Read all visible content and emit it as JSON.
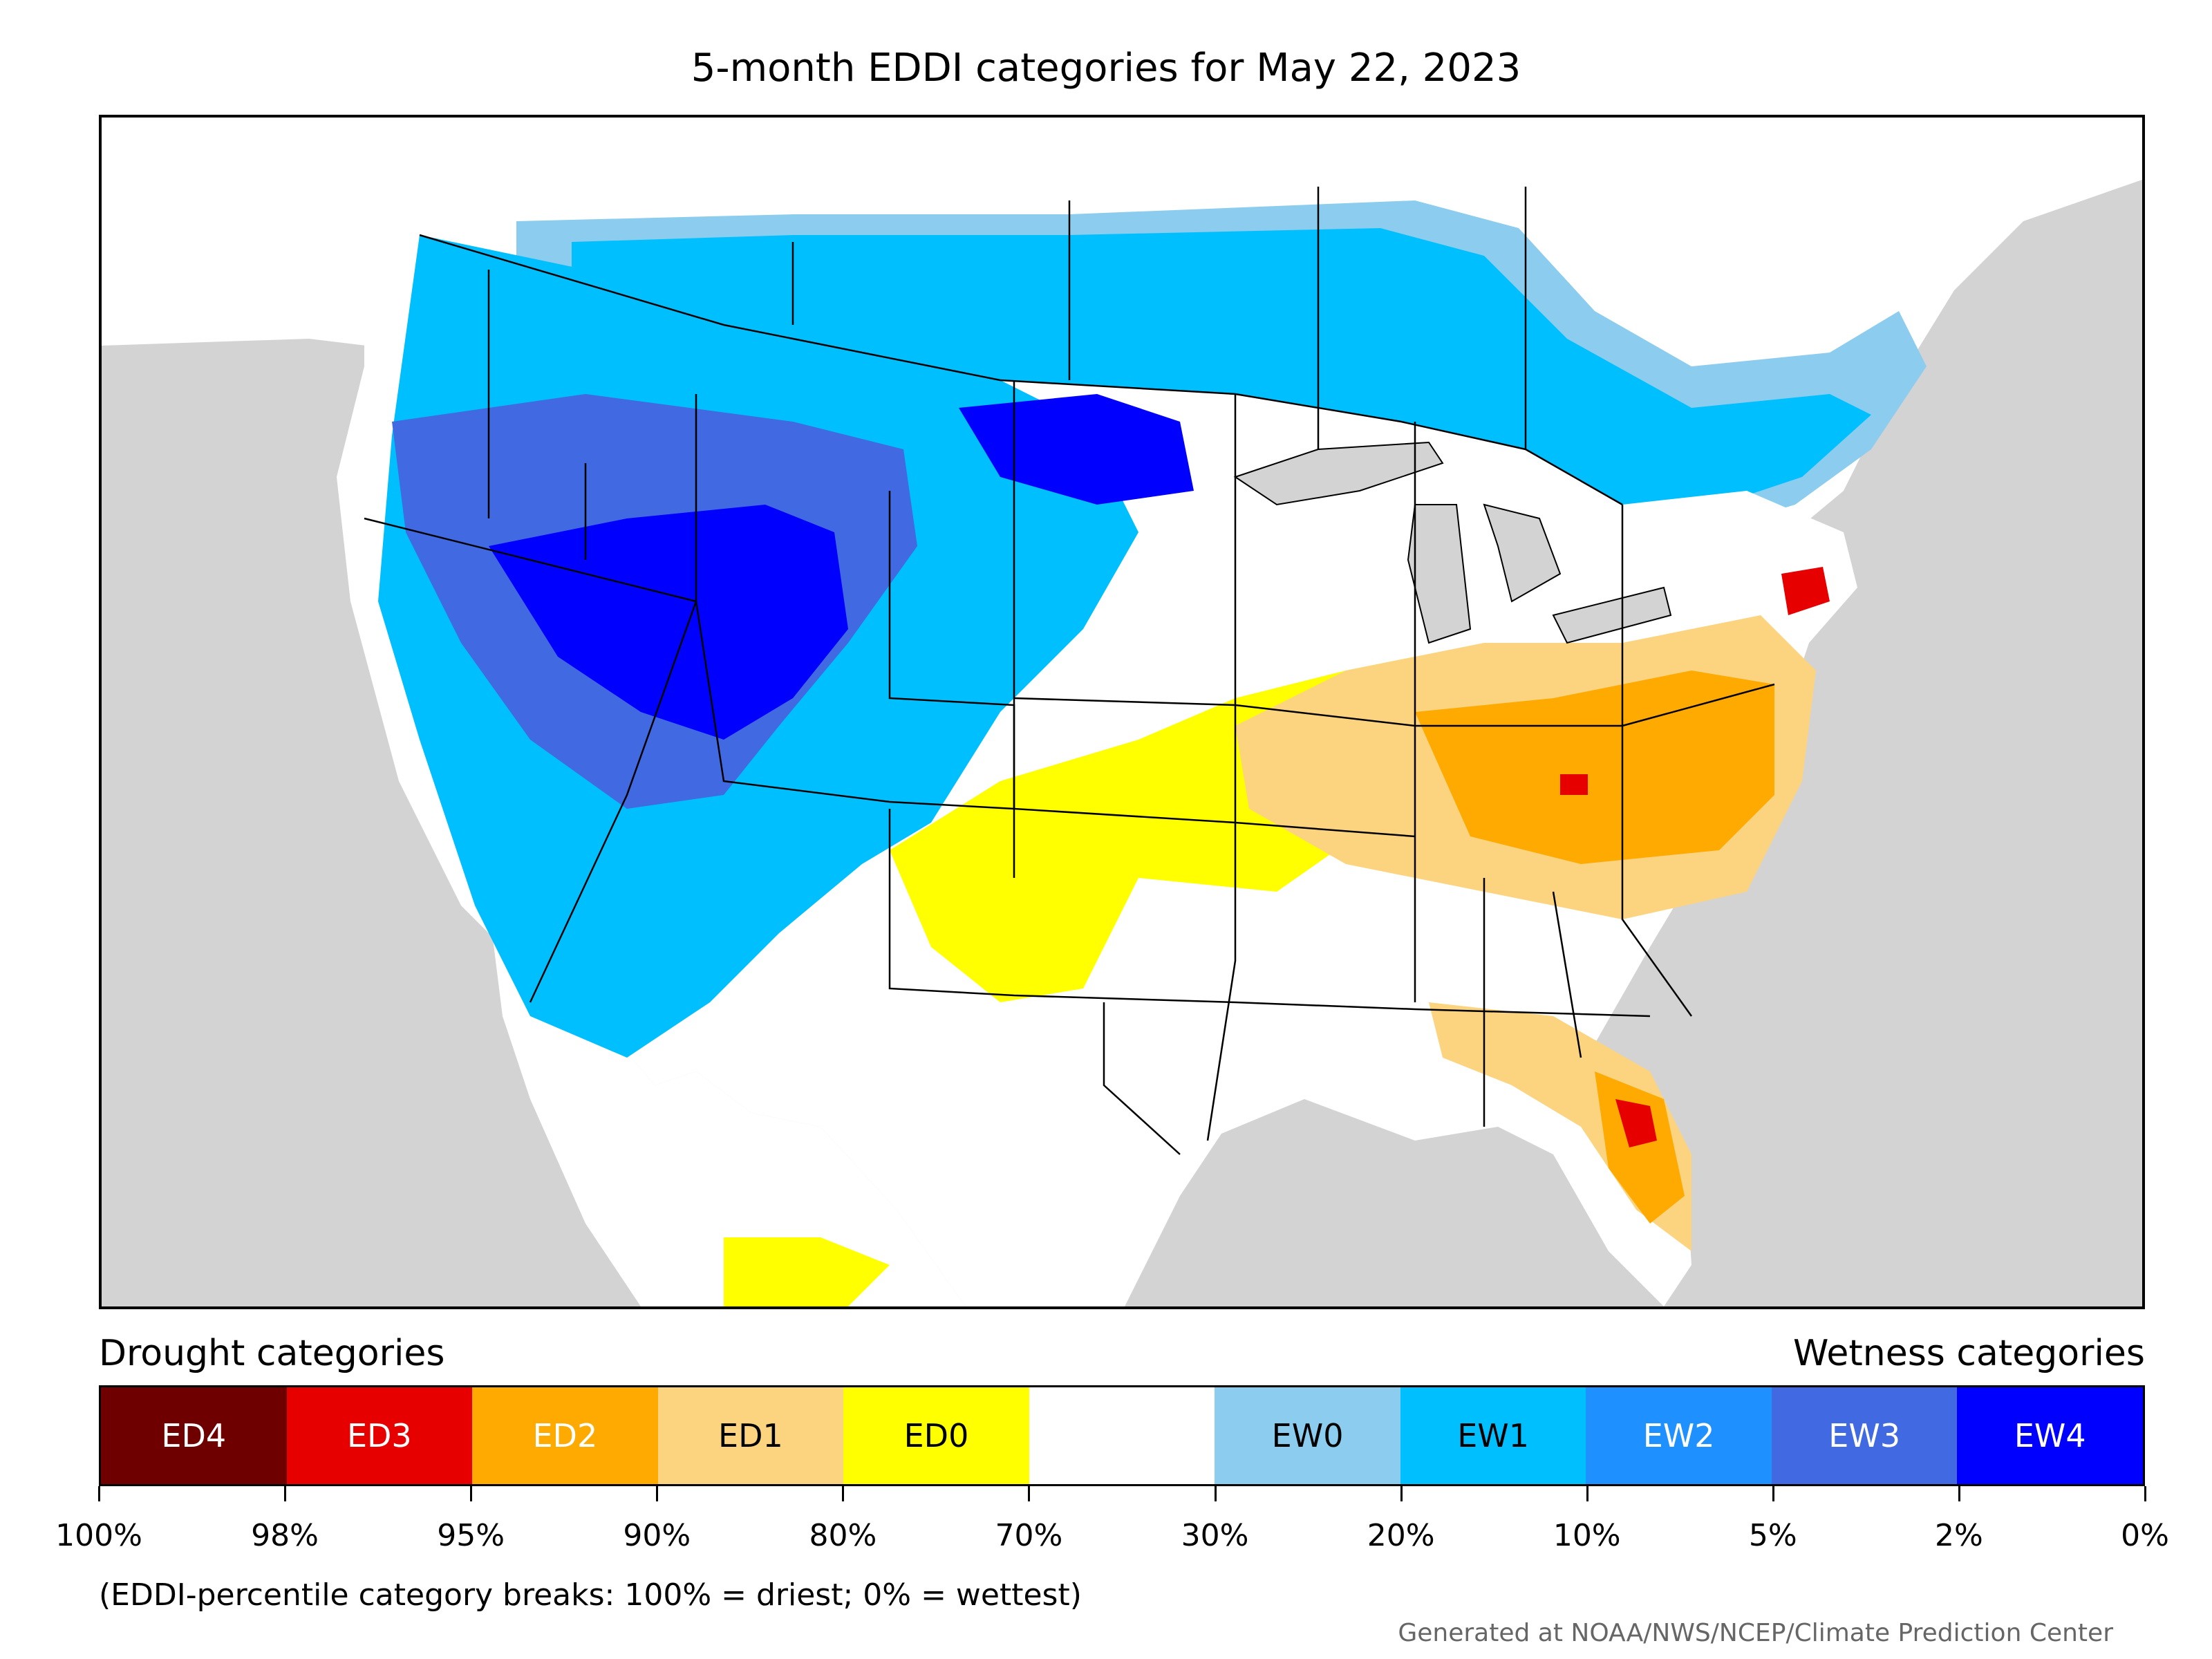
{
  "title": "5-month EDDI categories for May 22, 2023",
  "legend": {
    "drought_heading": "Drought categories",
    "wetness_heading": "Wetness categories",
    "categories": [
      {
        "label": "ED4",
        "color": "#6e0000",
        "text_color": "#ffffff"
      },
      {
        "label": "ED3",
        "color": "#e60000",
        "text_color": "#ffffff"
      },
      {
        "label": "ED2",
        "color": "#ffaa00",
        "text_color": "#ffffff"
      },
      {
        "label": "ED1",
        "color": "#fcd37f",
        "text_color": "#000000"
      },
      {
        "label": "ED0",
        "color": "#ffff00",
        "text_color": "#000000"
      },
      {
        "label": "",
        "color": "#ffffff",
        "text_color": "#000000"
      },
      {
        "label": "EW0",
        "color": "#8ccdef",
        "text_color": "#000000"
      },
      {
        "label": "EW1",
        "color": "#00bfff",
        "text_color": "#000000"
      },
      {
        "label": "EW2",
        "color": "#1e90ff",
        "text_color": "#ffffff"
      },
      {
        "label": "EW3",
        "color": "#4169e1",
        "text_color": "#ffffff"
      },
      {
        "label": "EW4",
        "color": "#0000ff",
        "text_color": "#ffffff"
      }
    ],
    "tick_labels": [
      "100%",
      "98%",
      "95%",
      "90%",
      "80%",
      "70%",
      "30%",
      "20%",
      "10%",
      "5%",
      "2%",
      "0%"
    ],
    "note": "(EDDI-percentile category breaks: 100% = driest; 0% = wettest)"
  },
  "credit": "Generated at NOAA/NWS/NCEP/Climate Prediction Center",
  "map": {
    "background_color": "#d3d3d3",
    "land_color": "#ffffff",
    "water_color": "#d3d3d3",
    "regions": [
      {
        "category": "EW1",
        "area": "northern plains and upper midwest"
      },
      {
        "category": "EW4",
        "area": "Great Basin and northern Rockies"
      },
      {
        "category": "ED2",
        "area": "Ohio Valley and mid-Atlantic"
      },
      {
        "category": "ED3",
        "area": "central Florida, southern New England, eastern Kentucky"
      },
      {
        "category": "ED0",
        "area": "southern plains"
      }
    ]
  }
}
